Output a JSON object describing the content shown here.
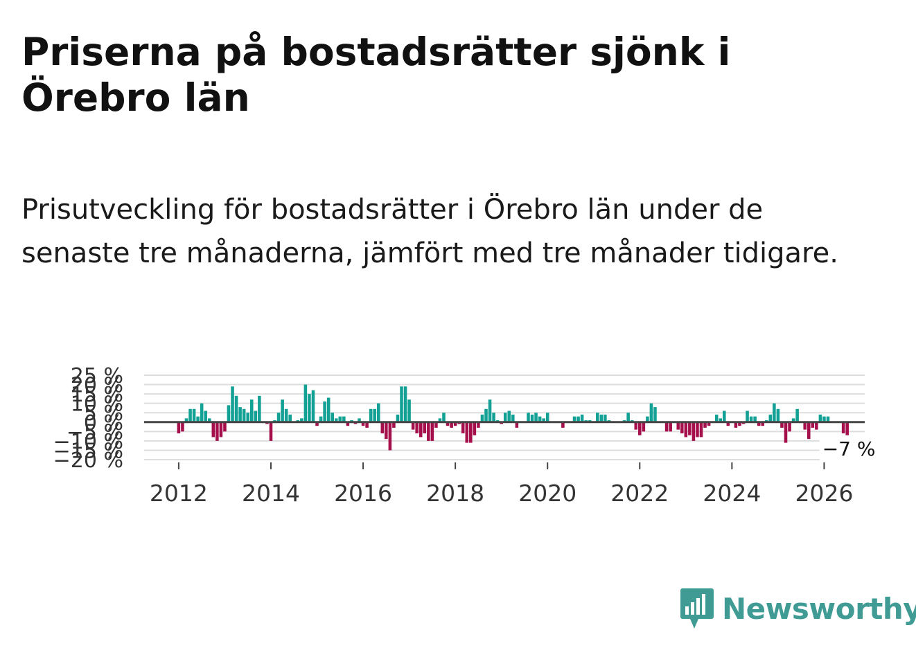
{
  "header": {
    "title": "Priserna på bostadsrätter sjönk i Örebro län",
    "subtitle": "Prisutveckling för bostadsrätter i Örebro län under de senaste tre månaderna, jämfört med tre månader tidigare."
  },
  "brand": {
    "name": "Newsworthy"
  },
  "colors": {
    "positive": "#14a195",
    "negative": "#a50f4b",
    "grid": "#dddddd",
    "zero": "#444444",
    "brand": "#3f9b94"
  },
  "chart_data": {
    "type": "bar",
    "title": "Priserna på bostadsrätter sjönk i Örebro län",
    "subtitle": "Prisutveckling för bostadsrätter i Örebro län under de senaste tre månaderna, jämfört med tre månader tidigare.",
    "xlabel": "",
    "ylabel": "",
    "unit": "%",
    "xlim": [
      2011.25,
      2026.88
    ],
    "ylim": [
      -20,
      25
    ],
    "yticks": [
      25,
      20,
      15,
      10,
      5,
      0,
      -5,
      -10,
      -15,
      -20
    ],
    "ytick_labels": [
      "25 %",
      "20 %",
      "15 %",
      "10 %",
      "5 %",
      "0 %",
      "−5 %",
      "−10 %",
      "−15 %",
      "−20 %"
    ],
    "xticks": [
      2012,
      2014,
      2016,
      2018,
      2020,
      2022,
      2024,
      2026
    ],
    "xtick_labels": [
      "2012",
      "2014",
      "2016",
      "2018",
      "2020",
      "2022",
      "2024",
      "2026"
    ],
    "start": {
      "year": 2012,
      "month": 1
    },
    "last_value_label": "−7 %",
    "series": [
      {
        "name": "Prisutveckling",
        "values": [
          -6,
          -5,
          2,
          7,
          7,
          3,
          10,
          6,
          2,
          -8,
          -10,
          -8,
          -5,
          9,
          19,
          14,
          8,
          7,
          5,
          12,
          6,
          14,
          0,
          -1,
          -10,
          1,
          5,
          12,
          7,
          4,
          0,
          1,
          2,
          20,
          15,
          17,
          -2,
          3,
          11,
          13,
          5,
          2,
          3,
          3,
          -2,
          1,
          -1,
          2,
          -2,
          -3,
          7,
          7,
          10,
          -6,
          -9,
          -15,
          -3,
          4,
          19,
          19,
          12,
          -4,
          -6,
          -8,
          -6,
          -10,
          -10,
          -3,
          2,
          5,
          -2,
          -3,
          -2,
          -1,
          -6,
          -11,
          -11,
          -7,
          -3,
          4,
          7,
          12,
          5,
          1,
          -1,
          5,
          6,
          4,
          -3,
          0,
          0,
          5,
          4,
          5,
          3,
          2,
          5,
          0,
          0,
          0,
          -3,
          0,
          0,
          3,
          3,
          4,
          1,
          1,
          0,
          5,
          4,
          4,
          1,
          0,
          0,
          0,
          1,
          5,
          1,
          -4,
          -7,
          -5,
          3,
          10,
          8,
          0,
          0,
          -5,
          -5,
          0,
          -4,
          -6,
          -8,
          -7,
          -10,
          -8,
          -8,
          -3,
          -2,
          0,
          4,
          2,
          6,
          -2,
          0,
          -3,
          -2,
          -1,
          6,
          3,
          3,
          -2,
          -2,
          1,
          4,
          10,
          7,
          -3,
          -11,
          -5,
          2,
          7,
          0,
          -4,
          -9,
          -3,
          -4,
          4,
          3,
          3,
          0,
          0,
          0,
          -6,
          -7
        ]
      }
    ]
  }
}
